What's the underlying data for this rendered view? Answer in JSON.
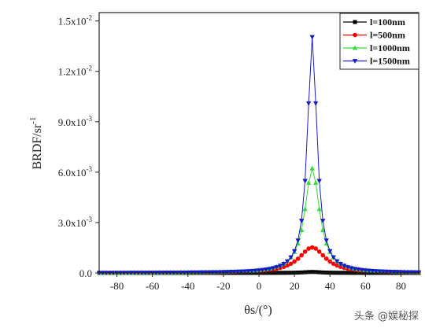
{
  "chart_data": {
    "type": "line",
    "xlabel": "θs/(°)",
    "ylabel": "BRDF/sr",
    "ylabel_superscript": "-1",
    "xlim": [
      -90,
      90
    ],
    "ylim": [
      0,
      0.0155
    ],
    "x_ticks": [
      -80,
      -60,
      -40,
      -20,
      0,
      20,
      40,
      60,
      80
    ],
    "x_tick_labels": [
      "-80",
      "-60",
      "-40",
      "-20",
      "0",
      "20",
      "40",
      "60",
      "80"
    ],
    "y_ticks": [
      0,
      0.003,
      0.006,
      0.009,
      0.012,
      0.015
    ],
    "y_tick_labels": [
      {
        "base": "0.0",
        "exp": ""
      },
      {
        "base": "3.0x10",
        "exp": "-3"
      },
      {
        "base": "6.0x10",
        "exp": "-3"
      },
      {
        "base": "9.0x10",
        "exp": "-3"
      },
      {
        "base": "1.2x10",
        "exp": "-2"
      },
      {
        "base": "1.5x10",
        "exp": "-2"
      }
    ],
    "legend_position": "top-right",
    "peak_x": 30,
    "series": [
      {
        "name": "l=100nm",
        "color": "#000000",
        "marker": "square",
        "peak": 6e-05,
        "width": 6
      },
      {
        "name": "l=500nm",
        "color": "#ff0000",
        "marker": "circle",
        "peak": 0.00152,
        "width": 9
      },
      {
        "name": "l=1000nm",
        "color": "#33dd33",
        "marker": "triangle-up",
        "peak": 0.00622,
        "width": 5
      },
      {
        "name": "l=1500nm",
        "color": "#1a1acc",
        "marker": "triangle-down",
        "peak": 0.01405,
        "width": 3.2
      }
    ]
  },
  "watermark": "头条 @娱秘探"
}
